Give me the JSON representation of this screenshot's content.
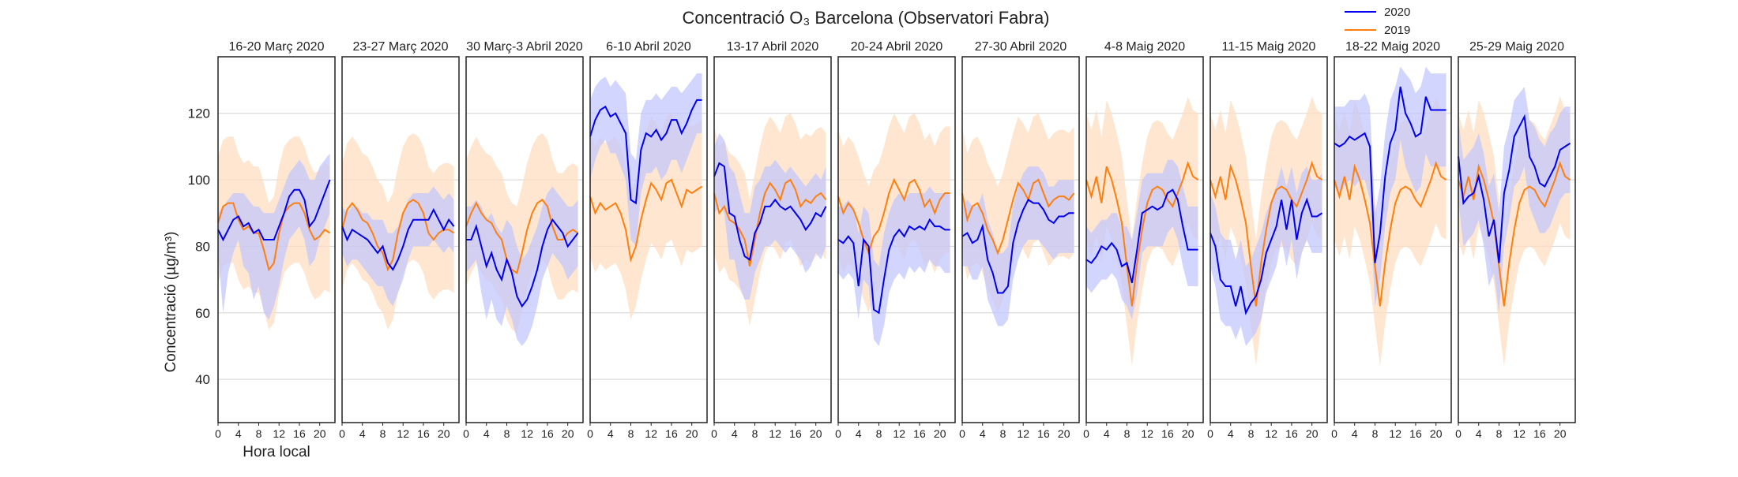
{
  "chart_data": {
    "type": "line",
    "title": "Concentració O₃ Barcelona (Observatori Fabra)",
    "ylabel": "Concentració (µg/m³)",
    "xlabel": "Hora local",
    "ylim": [
      27,
      137
    ],
    "yticks": [
      40,
      60,
      80,
      100,
      120
    ],
    "xlim": [
      0,
      23
    ],
    "xticks": [
      0,
      4,
      8,
      12,
      16,
      20
    ],
    "grid": "horizontal",
    "legend_position": "top-right",
    "colors": {
      "s2020": "#0000ee",
      "s2019": "#ff7f0e",
      "band2020": "#bfc4ff",
      "band2019": "#ffddc2"
    },
    "legend": [
      {
        "label": "2020"
      },
      {
        "label": "2019"
      }
    ],
    "panels": [
      {
        "title": "16-20 Març 2020",
        "series2020": [
          85,
          82,
          85,
          88,
          89,
          86,
          87,
          84,
          85,
          82,
          82,
          82,
          86,
          90,
          95,
          97,
          97,
          94,
          86,
          88,
          92,
          96,
          100
        ],
        "band2020_lo": [
          78,
          60,
          72,
          78,
          82,
          74,
          72,
          64,
          68,
          60,
          58,
          62,
          68,
          76,
          82,
          84,
          86,
          82,
          74,
          76,
          82,
          86,
          90
        ],
        "band2020_hi": [
          90,
          92,
          94,
          96,
          96,
          96,
          94,
          92,
          92,
          90,
          90,
          90,
          94,
          98,
          102,
          104,
          106,
          104,
          100,
          100,
          104,
          106,
          108
        ],
        "series2019": [
          87,
          92,
          93,
          93,
          88,
          85,
          86,
          84,
          84,
          79,
          73,
          75,
          84,
          90,
          92,
          93,
          93,
          90,
          85,
          82,
          83,
          85,
          84
        ]
      },
      {
        "title": "23-27 Març 2020",
        "series2020": [
          86,
          82,
          85,
          84,
          83,
          82,
          80,
          78,
          80,
          75,
          73,
          76,
          80,
          85,
          88,
          88,
          88,
          88,
          91,
          88,
          85,
          88,
          86
        ],
        "band2020_lo": [
          78,
          74,
          76,
          76,
          74,
          72,
          70,
          68,
          68,
          64,
          62,
          66,
          70,
          76,
          80,
          80,
          80,
          80,
          82,
          80,
          78,
          80,
          78
        ],
        "band2020_hi": [
          92,
          90,
          92,
          92,
          90,
          90,
          88,
          88,
          88,
          84,
          84,
          86,
          90,
          94,
          96,
          96,
          96,
          96,
          98,
          96,
          94,
          96,
          94
        ],
        "series2019": [
          85,
          91,
          93,
          91,
          88,
          87,
          84,
          80,
          78,
          73,
          76,
          84,
          90,
          93,
          94,
          93,
          90,
          84,
          82,
          84,
          85,
          85,
          84
        ]
      },
      {
        "title": "30 Març-3 Abril 2020",
        "series2020": [
          82,
          82,
          86,
          80,
          74,
          78,
          73,
          70,
          76,
          72,
          65,
          62,
          64,
          68,
          73,
          80,
          85,
          88,
          86,
          84,
          80,
          82,
          84
        ],
        "band2020_lo": [
          72,
          74,
          76,
          66,
          58,
          64,
          58,
          56,
          62,
          58,
          52,
          50,
          52,
          56,
          62,
          70,
          74,
          78,
          76,
          74,
          70,
          72,
          74
        ],
        "band2020_hi": [
          92,
          92,
          94,
          92,
          88,
          90,
          86,
          84,
          88,
          86,
          80,
          76,
          78,
          82,
          86,
          92,
          96,
          98,
          96,
          94,
          92,
          92,
          94
        ],
        "series2019": [
          86,
          90,
          93,
          90,
          88,
          87,
          84,
          82,
          76,
          73,
          72,
          78,
          85,
          90,
          93,
          94,
          92,
          86,
          82,
          82,
          84,
          85,
          84
        ]
      },
      {
        "title": "6-10 Abril 2020",
        "series2020": [
          113,
          118,
          121,
          122,
          119,
          120,
          117,
          114,
          94,
          93,
          109,
          114,
          113,
          115,
          112,
          114,
          118,
          118,
          114,
          117,
          121,
          124,
          124
        ],
        "band2020_lo": [
          100,
          106,
          110,
          112,
          108,
          108,
          104,
          100,
          82,
          80,
          96,
          102,
          102,
          104,
          100,
          102,
          106,
          106,
          102,
          106,
          110,
          114,
          114
        ],
        "band2020_hi": [
          124,
          128,
          130,
          131,
          128,
          130,
          128,
          126,
          108,
          106,
          120,
          124,
          124,
          126,
          124,
          126,
          128,
          128,
          126,
          128,
          130,
          132,
          132
        ],
        "series2019": [
          95,
          90,
          93,
          91,
          92,
          93,
          90,
          85,
          76,
          80,
          88,
          94,
          99,
          97,
          94,
          99,
          100,
          96,
          92,
          97,
          96,
          97,
          98
        ]
      },
      {
        "title": "13-17 Abril 2020",
        "series2020": [
          101,
          105,
          104,
          90,
          89,
          82,
          77,
          76,
          84,
          87,
          92,
          92,
          94,
          92,
          91,
          92,
          90,
          88,
          85,
          87,
          90,
          89,
          92
        ],
        "band2020_lo": [
          90,
          92,
          90,
          76,
          76,
          68,
          64,
          64,
          72,
          76,
          80,
          80,
          82,
          80,
          78,
          80,
          78,
          76,
          72,
          74,
          78,
          76,
          80
        ],
        "band2020_hi": [
          110,
          114,
          112,
          104,
          102,
          96,
          90,
          90,
          98,
          100,
          104,
          104,
          106,
          104,
          102,
          104,
          102,
          100,
          98,
          100,
          102,
          100,
          104
        ],
        "series2019": [
          96,
          90,
          92,
          88,
          87,
          85,
          82,
          74,
          82,
          90,
          96,
          99,
          97,
          94,
          99,
          100,
          97,
          92,
          94,
          93,
          95,
          96,
          94
        ]
      },
      {
        "title": "20-24 Abril 2020",
        "series2020": [
          82,
          81,
          83,
          81,
          68,
          82,
          80,
          61,
          60,
          70,
          79,
          83,
          85,
          83,
          86,
          85,
          86,
          85,
          88,
          86,
          86,
          85,
          85
        ],
        "band2020_lo": [
          72,
          70,
          72,
          70,
          58,
          70,
          68,
          52,
          50,
          56,
          66,
          70,
          72,
          70,
          74,
          72,
          74,
          72,
          76,
          74,
          74,
          72,
          72
        ],
        "band2020_hi": [
          92,
          92,
          94,
          92,
          84,
          92,
          90,
          76,
          74,
          84,
          90,
          94,
          96,
          94,
          96,
          96,
          96,
          96,
          98,
          96,
          96,
          96,
          96
        ],
        "series2019": [
          95,
          90,
          93,
          91,
          87,
          82,
          78,
          83,
          85,
          90,
          96,
          100,
          97,
          94,
          99,
          100,
          97,
          92,
          94,
          90,
          94,
          96,
          96
        ]
      },
      {
        "title": "27-30 Abril 2020",
        "series2020": [
          83,
          84,
          81,
          82,
          86,
          76,
          72,
          66,
          66,
          68,
          81,
          87,
          91,
          94,
          93,
          93,
          91,
          88,
          87,
          89,
          89,
          90,
          90
        ],
        "band2020_lo": [
          74,
          74,
          70,
          70,
          74,
          64,
          60,
          56,
          56,
          58,
          70,
          76,
          80,
          82,
          82,
          82,
          80,
          78,
          76,
          78,
          78,
          78,
          78
        ],
        "band2020_hi": [
          92,
          94,
          92,
          92,
          96,
          88,
          84,
          78,
          78,
          80,
          92,
          98,
          102,
          104,
          104,
          104,
          102,
          98,
          98,
          100,
          100,
          100,
          100
        ],
        "series2019": [
          96,
          88,
          92,
          93,
          90,
          85,
          82,
          78,
          82,
          88,
          94,
          99,
          97,
          94,
          99,
          100,
          96,
          92,
          94,
          95,
          95,
          94,
          96
        ]
      },
      {
        "title": "4-8 Maig 2020",
        "series2020": [
          76,
          75,
          77,
          80,
          79,
          81,
          79,
          74,
          75,
          69,
          79,
          90,
          91,
          92,
          91,
          92,
          96,
          97,
          94,
          86,
          79,
          79,
          79
        ],
        "band2020_lo": [
          68,
          66,
          68,
          70,
          70,
          72,
          70,
          64,
          62,
          58,
          66,
          78,
          80,
          80,
          80,
          80,
          84,
          86,
          82,
          74,
          68,
          68,
          68
        ],
        "band2020_hi": [
          86,
          84,
          86,
          88,
          88,
          90,
          90,
          86,
          86,
          82,
          90,
          100,
          102,
          102,
          102,
          102,
          106,
          106,
          104,
          98,
          92,
          92,
          92
        ],
        "series2019": [
          100,
          95,
          101,
          93,
          104,
          100,
          94,
          87,
          74,
          62,
          75,
          85,
          93,
          97,
          98,
          97,
          94,
          92,
          96,
          100,
          105,
          101,
          100
        ]
      },
      {
        "title": "11-15 Maig 2020",
        "series2020": [
          84,
          80,
          70,
          68,
          68,
          62,
          68,
          60,
          63,
          65,
          70,
          78,
          82,
          86,
          94,
          85,
          94,
          82,
          90,
          94,
          89,
          89,
          90
        ],
        "band2020_lo": [
          74,
          68,
          58,
          56,
          56,
          52,
          56,
          50,
          52,
          54,
          58,
          66,
          70,
          74,
          82,
          74,
          82,
          70,
          78,
          82,
          78,
          78,
          78
        ],
        "band2020_hi": [
          96,
          92,
          84,
          82,
          82,
          76,
          82,
          74,
          76,
          80,
          84,
          90,
          94,
          98,
          104,
          98,
          104,
          96,
          102,
          104,
          100,
          100,
          102
        ],
        "series2019": [
          100,
          95,
          101,
          94,
          104,
          100,
          94,
          87,
          74,
          62,
          75,
          85,
          93,
          97,
          98,
          97,
          94,
          92,
          96,
          100,
          105,
          101,
          100
        ]
      },
      {
        "title": "18-22 Maig 2020",
        "series2020": [
          111,
          110,
          111,
          113,
          112,
          113,
          114,
          110,
          75,
          84,
          101,
          111,
          115,
          128,
          120,
          117,
          113,
          114,
          125,
          121,
          121,
          121,
          121
        ],
        "band2020_lo": [
          98,
          96,
          98,
          100,
          98,
          100,
          100,
          94,
          62,
          70,
          86,
          96,
          100,
          112,
          104,
          100,
          96,
          98,
          108,
          104,
          104,
          104,
          104
        ],
        "band2020_hi": [
          122,
          122,
          122,
          124,
          124,
          124,
          126,
          122,
          90,
          98,
          114,
          124,
          128,
          134,
          132,
          130,
          126,
          128,
          134,
          132,
          132,
          132,
          132
        ],
        "series2019": [
          100,
          95,
          101,
          94,
          104,
          100,
          94,
          87,
          74,
          62,
          75,
          85,
          93,
          97,
          98,
          97,
          94,
          92,
          96,
          100,
          105,
          101,
          100
        ]
      },
      {
        "title": "25-29 Maig 2020",
        "series2020": [
          107,
          93,
          95,
          96,
          101,
          94,
          83,
          88,
          75,
          96,
          103,
          113,
          116,
          119,
          107,
          104,
          99,
          98,
          101,
          104,
          109,
          110,
          111
        ],
        "band2020_lo": [
          94,
          80,
          82,
          84,
          88,
          80,
          68,
          72,
          60,
          80,
          88,
          98,
          100,
          104,
          92,
          88,
          84,
          84,
          86,
          90,
          94,
          96,
          96
        ],
        "band2020_hi": [
          118,
          106,
          108,
          110,
          114,
          108,
          98,
          102,
          90,
          110,
          116,
          124,
          126,
          128,
          118,
          116,
          112,
          110,
          114,
          116,
          120,
          122,
          122
        ],
        "series2019": [
          100,
          95,
          101,
          94,
          104,
          100,
          94,
          87,
          74,
          62,
          75,
          85,
          93,
          97,
          98,
          97,
          94,
          92,
          96,
          100,
          105,
          101,
          100
        ]
      }
    ]
  }
}
